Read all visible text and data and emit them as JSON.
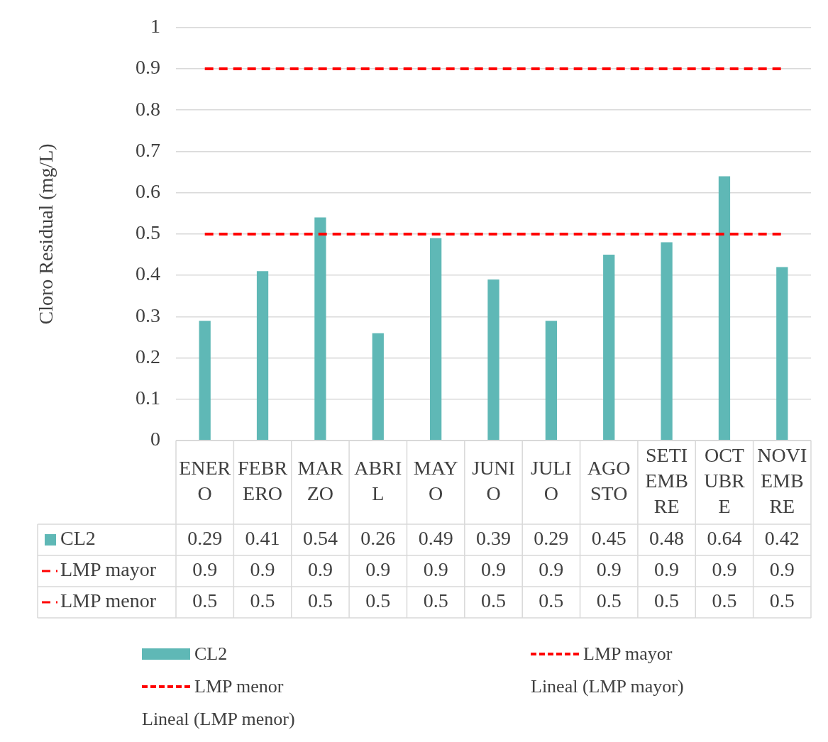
{
  "chart_data": {
    "type": "bar",
    "ylabel": "Cloro Residual (mg/L)",
    "categories": [
      "ENERO",
      "FEBRERO",
      "MARZO",
      "ABRIL",
      "MAYO",
      "JUNIO",
      "JULIO",
      "AGOSTO",
      "SETIEMBRE",
      "OCTUBRE",
      "NOVIEMBRE"
    ],
    "series": [
      {
        "name": "CL2",
        "color": "#5fb8b6",
        "values": [
          0.29,
          0.41,
          0.54,
          0.26,
          0.49,
          0.39,
          0.29,
          0.45,
          0.48,
          0.64,
          0.42
        ]
      },
      {
        "name": "LMP mayor",
        "type": "line",
        "color": "#ff0000",
        "line_style": "dashed",
        "values": [
          0.9,
          0.9,
          0.9,
          0.9,
          0.9,
          0.9,
          0.9,
          0.9,
          0.9,
          0.9,
          0.9
        ]
      },
      {
        "name": "LMP menor",
        "type": "line",
        "color": "#ff0000",
        "line_style": "dashed",
        "values": [
          0.5,
          0.5,
          0.5,
          0.5,
          0.5,
          0.5,
          0.5,
          0.5,
          0.5,
          0.5,
          0.5
        ]
      }
    ],
    "annotations": [
      "Lineal (LMP mayor)",
      "Lineal (LMP menor)"
    ],
    "ylim": [
      0,
      1
    ],
    "yticks": [
      0,
      0.1,
      0.2,
      0.3,
      0.4,
      0.5,
      0.6,
      0.7,
      0.8,
      0.9,
      1
    ],
    "grid": "y",
    "legend": "bottom",
    "data_labels": true
  }
}
